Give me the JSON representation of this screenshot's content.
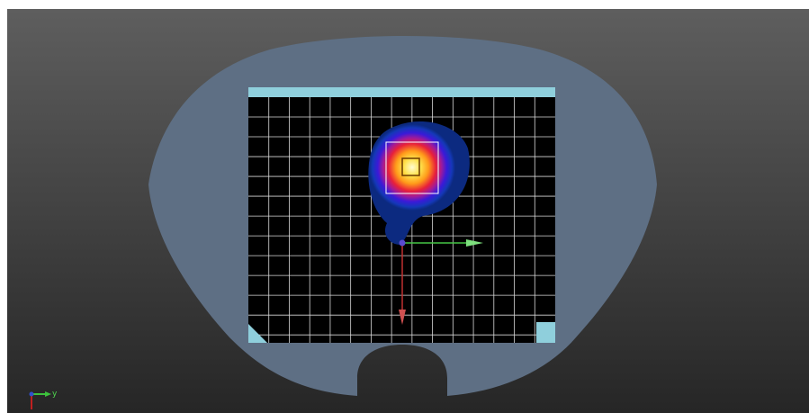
{
  "axis_triad": {
    "y_label": "y"
  }
}
